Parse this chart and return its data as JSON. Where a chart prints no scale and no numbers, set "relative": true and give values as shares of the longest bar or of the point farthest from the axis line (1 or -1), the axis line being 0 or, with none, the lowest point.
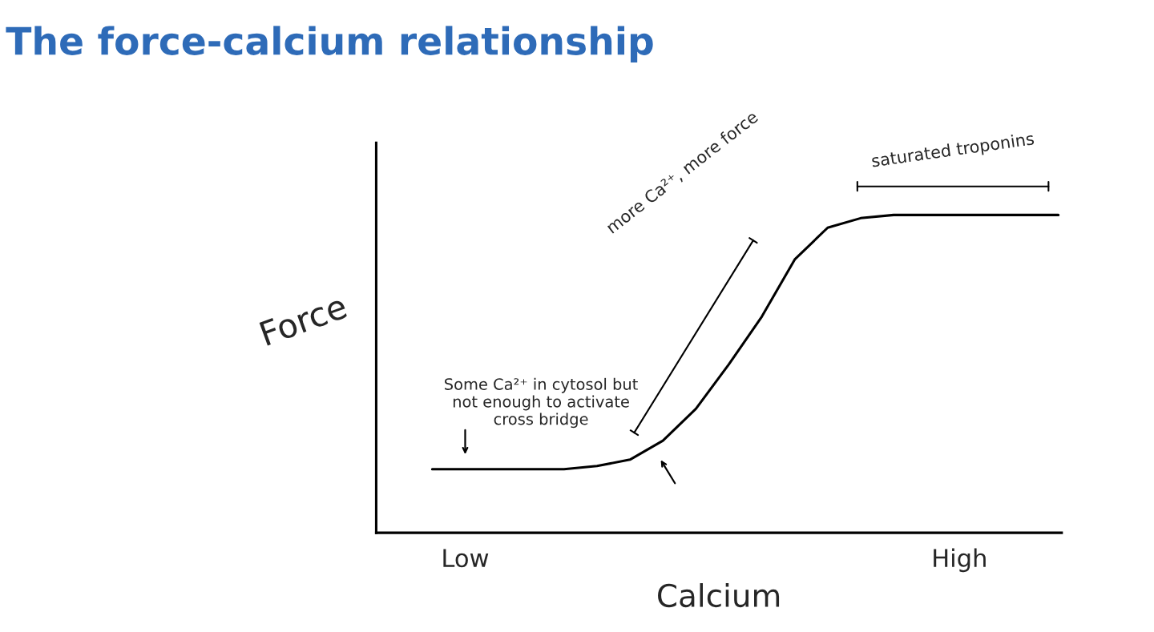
{
  "chart_data": {
    "type": "line",
    "title": "The force-calcium relationship",
    "xlabel": "Calcium",
    "ylabel": "Force",
    "relative": true,
    "categories": [
      null,
      "Low",
      null,
      null,
      null,
      null,
      null,
      null,
      null,
      null,
      null,
      null,
      null,
      null,
      null,
      null,
      "High",
      null,
      null,
      null
    ],
    "series": [
      {
        "color": "#000000",
        "values": [
          0.2,
          0.2,
          0.2,
          0.2,
          0.2,
          0.21,
          0.23,
          0.29,
          0.39,
          0.53,
          0.68,
          0.86,
          0.96,
          0.99,
          1,
          1,
          1,
          1,
          1,
          1
        ]
      }
    ],
    "annotations": [
      "Some Ca²⁺ in cytosol but not enough to activate cross bridge",
      "more Ca²⁺, more force",
      "saturated troponins"
    ],
    "grid": false,
    "marker": "none",
    "line_style": "solid"
  }
}
